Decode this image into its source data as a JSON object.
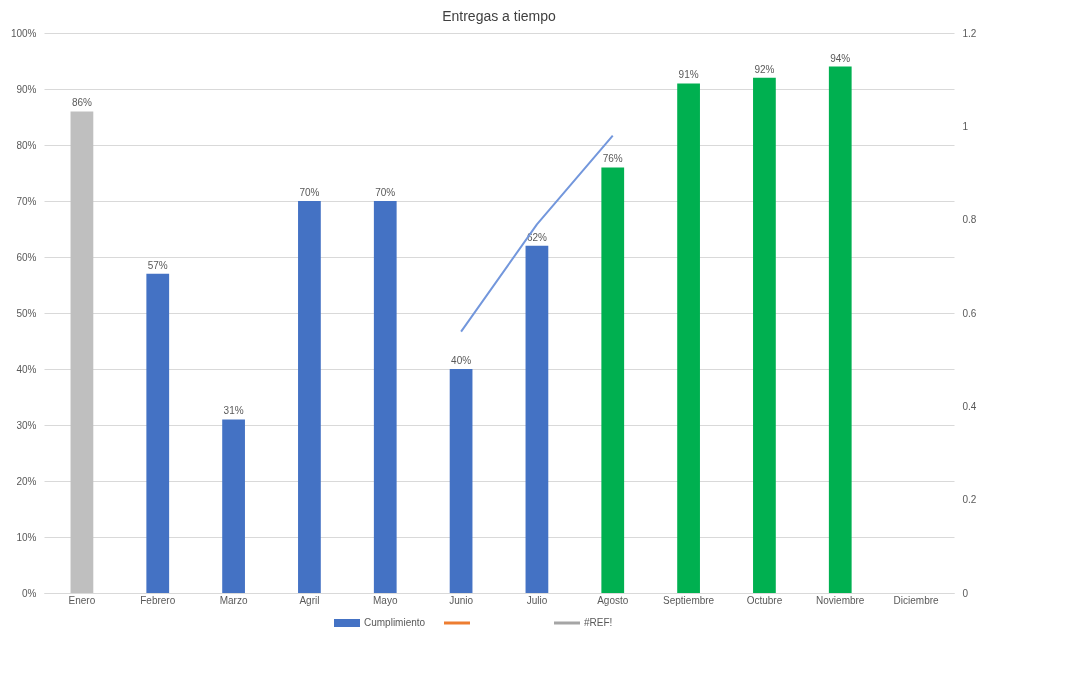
{
  "chart_data": {
    "type": "bar",
    "title": "Entregas a tiempo",
    "categories": [
      "Enero",
      "Febrero",
      "Marzo",
      "Agril",
      "Mayo",
      "Junio",
      "Julio",
      "Agosto",
      "Septiembre",
      "Octubre",
      "Noviembre",
      "Diciembre"
    ],
    "series": [
      {
        "name": "Cumplimiento",
        "color": "#4472c4",
        "colors": [
          "#bfbfbf",
          "#4472c4",
          "#4472c4",
          "#4472c4",
          "#4472c4",
          "#4472c4",
          "#4472c4",
          "#00b050",
          "#00b050",
          "#00b050",
          "#00b050",
          null
        ],
        "values": [
          86,
          57,
          31,
          70,
          70,
          40,
          62,
          76,
          91,
          92,
          94,
          null
        ],
        "value_labels": [
          "86%",
          "57%",
          "31%",
          "70%",
          "70%",
          "40%",
          "62%",
          "76%",
          "91%",
          "92%",
          "94%",
          null
        ]
      },
      {
        "type": "line",
        "color": "#ed7d31",
        "values": [
          null,
          null,
          null,
          null,
          null,
          null,
          null,
          null,
          null,
          null,
          null,
          null
        ]
      },
      {
        "name": "#REF!",
        "type": "line",
        "color": "#a5a5a5",
        "values": [
          null,
          null,
          null,
          null,
          null,
          null,
          null,
          null,
          null,
          null,
          null,
          null
        ]
      },
      {
        "type": "line",
        "axis": "y2",
        "color": "#7397dc",
        "values": [
          null,
          null,
          null,
          null,
          null,
          0.56,
          0.79,
          0.98,
          null,
          null,
          null,
          null
        ]
      }
    ],
    "ylim": [
      0,
      100
    ],
    "yticks": [
      {
        "value": 0,
        "label": "0%"
      },
      {
        "value": 10,
        "label": "10%"
      },
      {
        "value": 20,
        "label": "20%"
      },
      {
        "value": 30,
        "label": "30%"
      },
      {
        "value": 40,
        "label": "40%"
      },
      {
        "value": 50,
        "label": "50%"
      },
      {
        "value": 60,
        "label": "60%"
      },
      {
        "value": 70,
        "label": "70%"
      },
      {
        "value": 80,
        "label": "80%"
      },
      {
        "value": 90,
        "label": "90%"
      },
      {
        "value": 100,
        "label": "100%"
      }
    ],
    "y2lim": [
      0,
      1.2
    ],
    "y2ticks": [
      0,
      0.2,
      0.4,
      0.6,
      0.8,
      1,
      1.2
    ],
    "grid": "y",
    "legend": "bottom"
  }
}
